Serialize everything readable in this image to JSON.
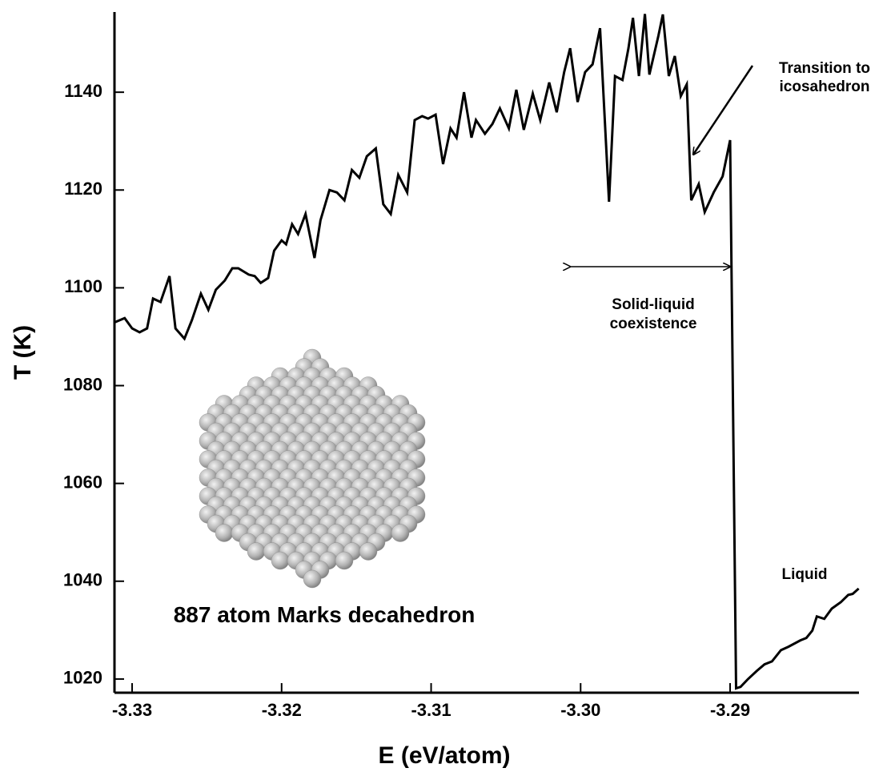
{
  "chart_data": {
    "type": "line",
    "x_label": "E (eV/atom)",
    "y_label": "T (K)",
    "xlim": [
      -3.33118,
      -3.28138
    ],
    "ylim": [
      1017.2,
      1156.4
    ],
    "xticks": [
      -3.33,
      -3.32,
      -3.31,
      {
        "value": -3.3,
        "label": "-3.30"
      },
      -3.29
    ],
    "yticks": [
      1020,
      1040,
      1060,
      1080,
      1100,
      1120,
      1140
    ],
    "grid": false,
    "series": [
      {
        "color": "#000000",
        "x": [
          -3.3312,
          -3.3305,
          -3.33,
          -3.3295,
          -3.329,
          -3.3286,
          -3.3281,
          -3.3275,
          -3.3271,
          -3.3265,
          -3.326,
          -3.3254,
          -3.3249,
          -3.3244,
          -3.3238,
          -3.3233,
          -3.3229,
          -3.3222,
          -3.3218,
          -3.3214,
          -3.3209,
          -3.3205,
          -3.32,
          -3.3197,
          -3.3193,
          -3.3189,
          -3.3184,
          -3.3178,
          -3.3174,
          -3.3168,
          -3.3163,
          -3.3158,
          -3.3153,
          -3.3148,
          -3.3143,
          -3.3137,
          -3.3132,
          -3.3127,
          -3.3122,
          -3.3116,
          -3.3111,
          -3.3106,
          -3.3102,
          -3.3097,
          -3.3092,
          -3.3087,
          -3.3083,
          -3.3078,
          -3.3073,
          -3.307,
          -3.3064,
          -3.3059,
          -3.3054,
          -3.3048,
          -3.3043,
          -3.3038,
          -3.3032,
          -3.3027,
          -3.3021,
          -3.3016,
          -3.3011,
          -3.3007,
          -3.3002,
          -3.2997,
          -3.2992,
          -3.2987,
          -3.2981,
          -3.2977,
          -3.2972,
          -3.2968,
          -3.2965,
          -3.2961,
          -3.2957,
          -3.2954,
          -3.2948,
          -3.2945,
          -3.2941,
          -3.2937,
          -3.2933,
          -3.2929,
          -3.2926,
          -3.2921,
          -3.2917,
          -3.2911,
          -3.2905,
          -3.29,
          -3.2896,
          -3.2893,
          -3.2888,
          -3.2882,
          -3.2877,
          -3.2872,
          -3.2866,
          -3.2861,
          -3.2853,
          -3.2849,
          -3.2845,
          -3.2842,
          -3.2837,
          -3.2832,
          -3.2826,
          -3.2821,
          -3.2818,
          -3.2814
        ],
        "values": [
          1092.9,
          1093.8,
          1091.7,
          1090.9,
          1091.7,
          1097.8,
          1097.1,
          1102.4,
          1091.7,
          1089.6,
          1093.4,
          1098.8,
          1095.5,
          1099.6,
          1101.5,
          1104.0,
          1104.0,
          1102.7,
          1102.4,
          1101.0,
          1102.0,
          1107.6,
          1109.7,
          1108.9,
          1113.0,
          1111.0,
          1115.1,
          1106.1,
          1113.8,
          1120.0,
          1119.5,
          1117.9,
          1124.1,
          1122.5,
          1126.9,
          1128.5,
          1117.1,
          1115.1,
          1123.1,
          1119.5,
          1134.3,
          1135.1,
          1134.6,
          1135.4,
          1125.3,
          1132.6,
          1130.7,
          1140.0,
          1130.7,
          1134.3,
          1131.5,
          1133.5,
          1136.7,
          1132.6,
          1140.5,
          1132.3,
          1139.7,
          1134.3,
          1142.0,
          1135.9,
          1144.1,
          1149.0,
          1138.0,
          1144.1,
          1145.7,
          1153.1,
          1117.6,
          1143.3,
          1142.5,
          1149.0,
          1155.2,
          1143.3,
          1156.0,
          1143.6,
          1151.5,
          1155.9,
          1143.3,
          1147.4,
          1139.2,
          1141.6,
          1117.9,
          1121.2,
          1115.5,
          1119.5,
          1122.8,
          1130.2,
          1018.1,
          1018.4,
          1020.0,
          1021.7,
          1023.0,
          1023.6,
          1025.9,
          1026.6,
          1027.9,
          1028.4,
          1029.9,
          1032.8,
          1032.3,
          1034.4,
          1035.7,
          1037.2,
          1037.4,
          1038.5
        ]
      }
    ],
    "annotations": [
      {
        "lines": [
          "Transition to",
          "icosahedron"
        ]
      },
      {
        "lines": [
          "Solid-liquid",
          "coexistence"
        ]
      },
      {
        "lines": [
          "Liquid"
        ]
      },
      {
        "lines": [
          "887 atom Marks decahedron"
        ]
      }
    ]
  }
}
